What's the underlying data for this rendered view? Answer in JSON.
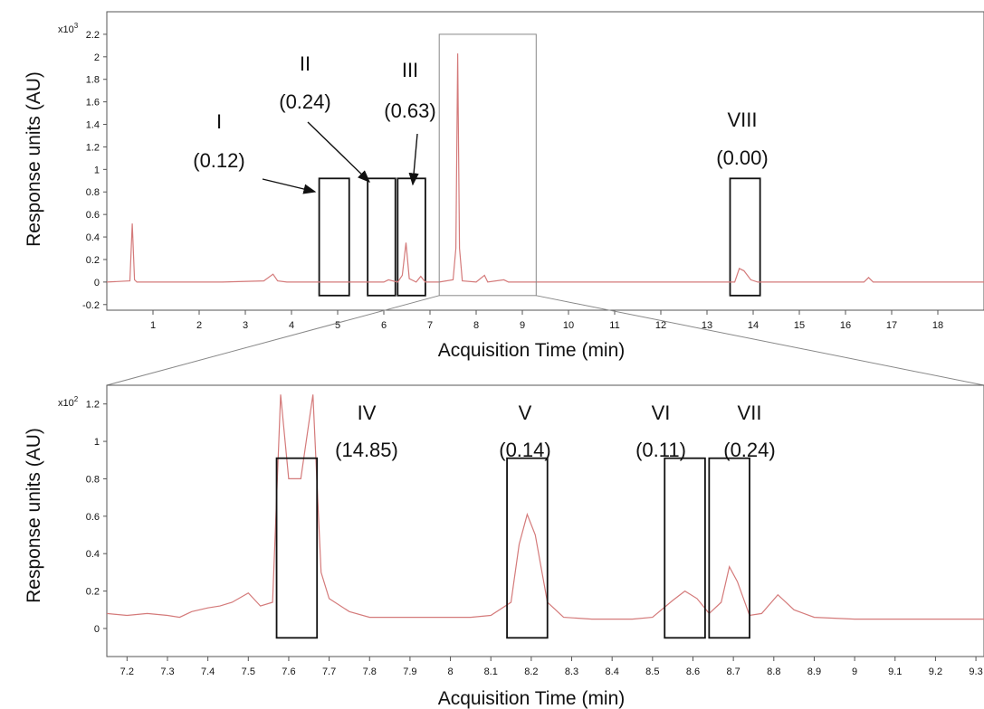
{
  "chart_data": [
    {
      "type": "line",
      "panel": "top",
      "xlabel": "Acquisition Time (min)",
      "ylabel": "Response units (AU)",
      "y_multiplier_label": "x10",
      "y_multiplier_exp": "3",
      "xlim": [
        0,
        19
      ],
      "ylim": [
        -0.25,
        2.4
      ],
      "x_ticks": [
        1,
        2,
        3,
        4,
        5,
        6,
        7,
        8,
        9,
        10,
        11,
        12,
        13,
        14,
        15,
        16,
        17,
        18
      ],
      "y_ticks": [
        -0.2,
        0,
        0.2,
        0.4,
        0.6,
        0.8,
        1,
        1.2,
        1.4,
        1.6,
        1.8,
        2,
        2.2
      ],
      "line_color": "#d47a7a",
      "x": [
        0.0,
        0.5,
        0.55,
        0.6,
        0.65,
        0.8,
        1.5,
        2.5,
        3.4,
        3.6,
        3.7,
        3.9,
        4.6,
        5.3,
        6.0,
        6.1,
        6.3,
        6.4,
        6.48,
        6.55,
        6.7,
        6.8,
        6.9,
        7.2,
        7.5,
        7.56,
        7.6,
        7.64,
        7.7,
        8.0,
        8.18,
        8.25,
        8.6,
        8.7,
        9.0,
        10.0,
        12.0,
        13.6,
        13.7,
        13.8,
        13.95,
        14.1,
        15.0,
        16.4,
        16.5,
        16.6,
        19.0
      ],
      "y": [
        0.0,
        0.01,
        0.52,
        0.02,
        0.0,
        0.0,
        0.0,
        0.0,
        0.01,
        0.07,
        0.01,
        0.0,
        0.0,
        0.0,
        0.0,
        0.02,
        0.0,
        0.06,
        0.35,
        0.03,
        0.0,
        0.05,
        0.0,
        0.0,
        0.02,
        0.3,
        2.03,
        0.3,
        0.01,
        0.0,
        0.06,
        0.0,
        0.02,
        0.0,
        0.0,
        0.0,
        0.0,
        0.0,
        0.12,
        0.1,
        0.02,
        0.0,
        0.0,
        0.0,
        0.04,
        0.0,
        0.0
      ],
      "boxes": [
        {
          "id": "I",
          "value": "(0.12)",
          "x0": 4.6,
          "x1": 5.25,
          "y0": -0.12,
          "y1": 0.92
        },
        {
          "id": "II",
          "value": "(0.24)",
          "x0": 5.65,
          "x1": 6.25,
          "y0": -0.12,
          "y1": 0.92
        },
        {
          "id": "III",
          "value": "(0.63)",
          "x0": 6.3,
          "x1": 6.9,
          "y0": -0.12,
          "y1": 0.92
        },
        {
          "id": "VIII",
          "value": "(0.00)",
          "x0": 13.5,
          "x1": 14.15,
          "y0": -0.12,
          "y1": 0.92
        }
      ],
      "zoom_window": {
        "x0": 7.2,
        "x1": 9.3,
        "y0": -0.12,
        "y1": 2.2
      }
    },
    {
      "type": "line",
      "panel": "bottom",
      "xlabel": "Acquisition Time (min)",
      "ylabel": "Response units (AU)",
      "y_multiplier_label": "x10",
      "y_multiplier_exp": "2",
      "xlim": [
        7.15,
        9.32
      ],
      "ylim": [
        -0.15,
        1.3
      ],
      "x_ticks": [
        7.2,
        7.3,
        7.4,
        7.5,
        7.6,
        7.7,
        7.8,
        7.9,
        8,
        8.1,
        8.2,
        8.3,
        8.4,
        8.5,
        8.6,
        8.7,
        8.8,
        8.9,
        9,
        9.1,
        9.2,
        9.3
      ],
      "y_ticks": [
        0,
        0.2,
        0.4,
        0.6,
        0.8,
        1,
        1.2
      ],
      "line_color": "#d47a7a",
      "x": [
        7.15,
        7.2,
        7.25,
        7.3,
        7.33,
        7.36,
        7.4,
        7.43,
        7.46,
        7.5,
        7.53,
        7.56,
        7.58,
        7.6,
        7.63,
        7.66,
        7.68,
        7.7,
        7.75,
        7.8,
        7.9,
        8.0,
        8.05,
        8.1,
        8.15,
        8.17,
        8.19,
        8.21,
        8.24,
        8.28,
        8.35,
        8.45,
        8.5,
        8.55,
        8.58,
        8.61,
        8.64,
        8.67,
        8.69,
        8.71,
        8.74,
        8.77,
        8.81,
        8.85,
        8.9,
        9.0,
        9.1,
        9.2,
        9.32
      ],
      "y": [
        0.08,
        0.07,
        0.08,
        0.07,
        0.06,
        0.09,
        0.11,
        0.12,
        0.14,
        0.19,
        0.12,
        0.14,
        1.25,
        0.8,
        0.8,
        1.25,
        0.3,
        0.16,
        0.09,
        0.06,
        0.06,
        0.06,
        0.06,
        0.07,
        0.14,
        0.45,
        0.61,
        0.5,
        0.14,
        0.06,
        0.05,
        0.05,
        0.06,
        0.15,
        0.2,
        0.16,
        0.08,
        0.14,
        0.33,
        0.25,
        0.07,
        0.08,
        0.18,
        0.1,
        0.06,
        0.05,
        0.05,
        0.05,
        0.05
      ],
      "boxes": [
        {
          "id": "IV",
          "value": "(14.85)",
          "x0": 7.57,
          "x1": 7.67,
          "y0": -0.05,
          "y1": 0.91
        },
        {
          "id": "V",
          "value": "(0.14)",
          "x0": 8.14,
          "x1": 8.24,
          "y0": -0.05,
          "y1": 0.91
        },
        {
          "id": "VI",
          "value": "(0.11)",
          "x0": 8.53,
          "x1": 8.63,
          "y0": -0.05,
          "y1": 0.91
        },
        {
          "id": "VII",
          "value": "(0.24)",
          "x0": 8.64,
          "x1": 8.74,
          "y0": -0.05,
          "y1": 0.91
        }
      ]
    }
  ]
}
